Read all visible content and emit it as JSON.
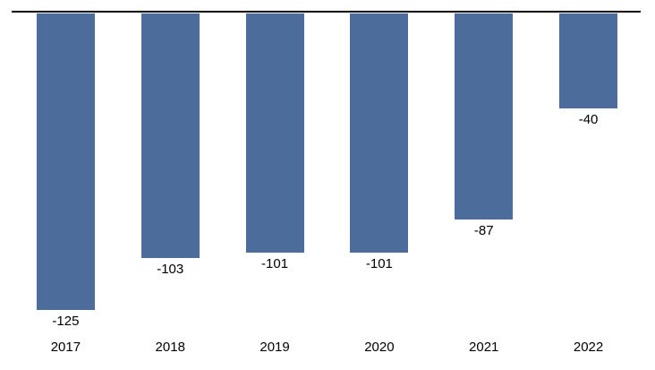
{
  "chart_data": {
    "type": "bar",
    "orientation": "vertical",
    "baseline": 0,
    "categories": [
      "2017",
      "2018",
      "2019",
      "2020",
      "2021",
      "2022"
    ],
    "values": [
      -125,
      -103,
      -101,
      -101,
      -87,
      -40
    ],
    "data_labels": [
      "-125",
      "-103",
      "-101",
      "-101",
      "-87",
      "-40"
    ],
    "title": "",
    "xlabel": "",
    "ylabel": "",
    "legend_position": "none",
    "grid": false,
    "axis_line_visible": true,
    "colors": {
      "bar": "#4C6D9C",
      "axis_line": "#000000",
      "label_text": "#000000",
      "background": "#ffffff"
    }
  }
}
